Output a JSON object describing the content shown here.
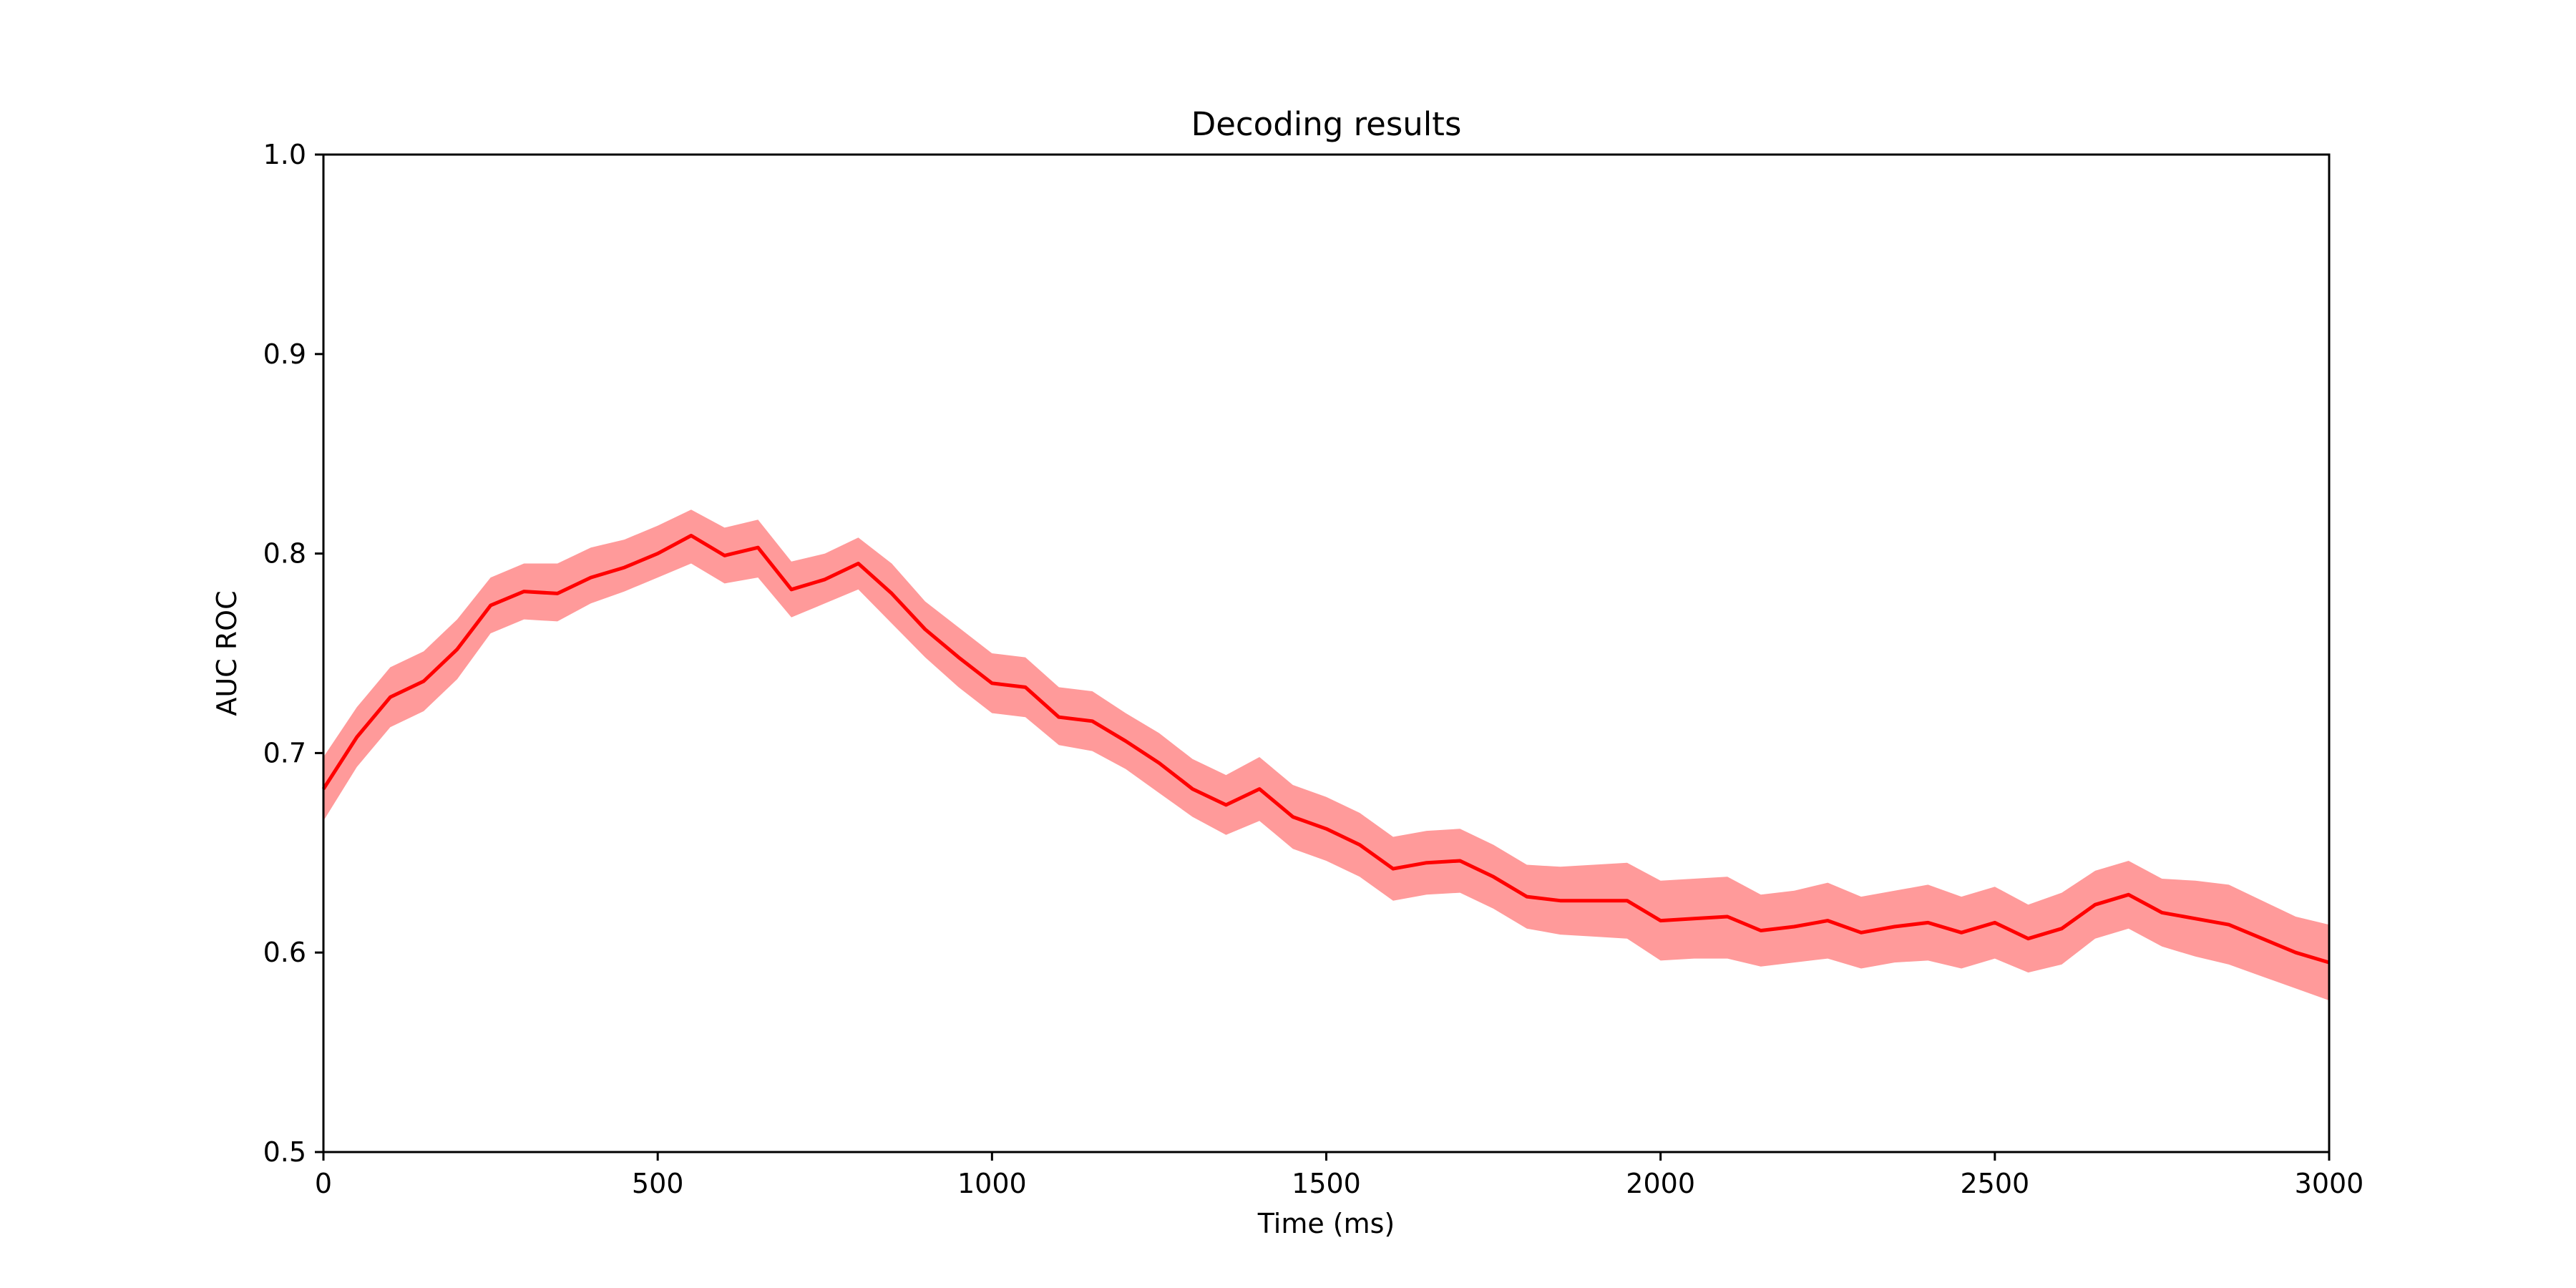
{
  "chart_data": {
    "type": "line",
    "title": "Decoding results",
    "xlabel": "Time (ms)",
    "ylabel": "AUC ROC",
    "xlim": [
      0,
      3000
    ],
    "ylim": [
      0.5,
      1.0
    ],
    "xticks": [
      0,
      500,
      1000,
      1500,
      2000,
      2500,
      3000
    ],
    "yticks": [
      0.5,
      0.6,
      0.7,
      0.8,
      0.9,
      1.0
    ],
    "xtick_labels": [
      "0",
      "500",
      "1000",
      "1500",
      "2000",
      "2500",
      "3000"
    ],
    "ytick_labels": [
      "0.5",
      "0.6",
      "0.7",
      "0.8",
      "0.9",
      "1.0"
    ],
    "grid": false,
    "legend": "none",
    "line_color": "#ff0000",
    "band_color": "#ff9a9a",
    "series": [
      {
        "x": [
          0,
          50,
          100,
          150,
          200,
          250,
          300,
          350,
          400,
          450,
          500,
          550,
          600,
          650,
          700,
          750,
          800,
          850,
          900,
          950,
          1000,
          1050,
          1100,
          1150,
          1200,
          1250,
          1300,
          1350,
          1400,
          1450,
          1500,
          1550,
          1600,
          1650,
          1700,
          1750,
          1800,
          1850,
          1900,
          1950,
          2000,
          2050,
          2100,
          2150,
          2200,
          2250,
          2300,
          2350,
          2400,
          2450,
          2500,
          2550,
          2600,
          2650,
          2700,
          2750,
          2800,
          2850,
          2900,
          2950,
          3000
        ],
        "values": [
          0.682,
          0.708,
          0.728,
          0.736,
          0.752,
          0.774,
          0.781,
          0.78,
          0.788,
          0.793,
          0.8,
          0.809,
          0.799,
          0.803,
          0.782,
          0.787,
          0.795,
          0.78,
          0.762,
          0.748,
          0.735,
          0.733,
          0.718,
          0.716,
          0.706,
          0.695,
          0.682,
          0.674,
          0.682,
          0.668,
          0.662,
          0.654,
          0.642,
          0.645,
          0.646,
          0.638,
          0.628,
          0.626,
          0.626,
          0.626,
          0.616,
          0.617,
          0.618,
          0.611,
          0.613,
          0.616,
          0.61,
          0.613,
          0.615,
          0.61,
          0.615,
          0.607,
          0.612,
          0.624,
          0.629,
          0.62,
          0.617,
          0.614,
          0.607,
          0.6,
          0.595
        ],
        "lower": [
          0.666,
          0.693,
          0.713,
          0.721,
          0.737,
          0.76,
          0.767,
          0.766,
          0.775,
          0.781,
          0.788,
          0.795,
          0.785,
          0.788,
          0.768,
          0.775,
          0.782,
          0.765,
          0.748,
          0.733,
          0.72,
          0.718,
          0.704,
          0.701,
          0.692,
          0.68,
          0.668,
          0.659,
          0.666,
          0.652,
          0.646,
          0.638,
          0.626,
          0.629,
          0.63,
          0.622,
          0.612,
          0.609,
          0.608,
          0.607,
          0.596,
          0.597,
          0.597,
          0.593,
          0.595,
          0.597,
          0.592,
          0.595,
          0.596,
          0.592,
          0.597,
          0.59,
          0.594,
          0.607,
          0.612,
          0.603,
          0.598,
          0.594,
          0.588,
          0.582,
          0.576
        ],
        "upper": [
          0.698,
          0.723,
          0.743,
          0.751,
          0.767,
          0.788,
          0.795,
          0.795,
          0.803,
          0.807,
          0.814,
          0.822,
          0.813,
          0.817,
          0.796,
          0.8,
          0.808,
          0.795,
          0.776,
          0.763,
          0.75,
          0.748,
          0.733,
          0.731,
          0.72,
          0.71,
          0.697,
          0.689,
          0.698,
          0.684,
          0.678,
          0.67,
          0.658,
          0.661,
          0.662,
          0.654,
          0.644,
          0.643,
          0.644,
          0.645,
          0.636,
          0.637,
          0.638,
          0.629,
          0.631,
          0.635,
          0.628,
          0.631,
          0.634,
          0.628,
          0.633,
          0.624,
          0.63,
          0.641,
          0.646,
          0.637,
          0.636,
          0.634,
          0.626,
          0.618,
          0.614
        ]
      }
    ]
  }
}
